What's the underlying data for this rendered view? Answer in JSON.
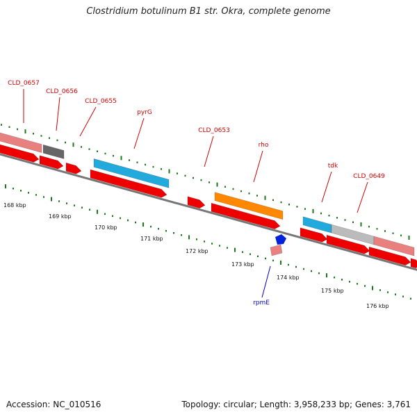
{
  "title": "Clostridium botulinum B1 str. Okra, complete genome",
  "footer": {
    "accession": "Accession: NC_010516",
    "topology": "Topology: circular; Length: 3,958,233 bp; Genes: 3,761"
  },
  "colors": {
    "label_red": "#cc0000",
    "label_blue": "#0000cc",
    "tick": "#1a7a1a",
    "backbone": "#777777",
    "cds_red": "#ee0000",
    "gene_pink": "#e88080",
    "gene_dark": "#666666",
    "gene_cyan": "#22aadd",
    "gene_orange": "#ff8800",
    "gene_grey": "#bbbbbb",
    "gene_blue": "#0022dd"
  },
  "scale_labels": [
    "168 kbp",
    "169 kbp",
    "170 kbp",
    "171 kbp",
    "172 kbp",
    "173 kbp",
    "174 kbp",
    "175 kbp",
    "176 kbp"
  ],
  "gene_labels": [
    "CLD_0657",
    "CLD_0656",
    "CLD_0655",
    "pyrG",
    "CLD_0653",
    "rho",
    "tdk",
    "CLD_0649",
    "rpmE"
  ]
}
